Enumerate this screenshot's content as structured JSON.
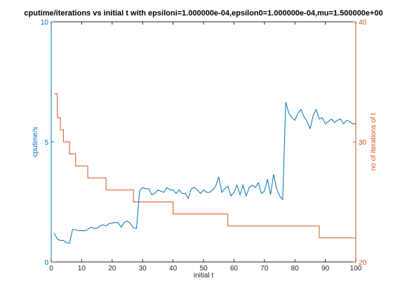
{
  "chart_data": {
    "type": "line",
    "title": "cputime/iterations vs initial t with epsiloni=1.000000e-04,epsilon0=1.000000e-04,mu=1.500000e+00",
    "xlabel": "initial t",
    "ylabel_left": "cputime/s",
    "ylabel_right": "no of iterations of t",
    "xlim": [
      0,
      100
    ],
    "ylim_left": [
      0,
      10
    ],
    "ylim_right": [
      20,
      40
    ],
    "xticks": [
      0,
      10,
      20,
      30,
      40,
      50,
      60,
      70,
      80,
      90,
      100
    ],
    "yticks_left": [
      0,
      5,
      10
    ],
    "yticks_right": [
      20,
      30,
      40
    ],
    "grid": false,
    "colors": {
      "left": "#0072BD",
      "right": "#D95319"
    },
    "series": [
      {
        "axis": "left",
        "x": [
          1,
          2,
          3,
          4,
          5,
          6,
          7,
          8,
          9,
          10,
          11,
          12,
          13,
          14,
          15,
          16,
          17,
          18,
          19,
          20,
          21,
          22,
          23,
          24,
          25,
          26,
          27,
          28,
          29,
          30,
          31,
          32,
          33,
          34,
          35,
          36,
          37,
          38,
          39,
          40,
          41,
          42,
          43,
          44,
          45,
          46,
          47,
          48,
          49,
          50,
          51,
          52,
          53,
          54,
          55,
          56,
          57,
          58,
          59,
          60,
          61,
          62,
          63,
          64,
          65,
          66,
          67,
          68,
          69,
          70,
          71,
          72,
          73,
          74,
          75,
          76,
          77,
          78,
          79,
          80,
          81,
          82,
          83,
          84,
          85,
          86,
          87,
          88,
          89,
          90,
          91,
          92,
          93,
          94,
          95,
          96,
          97,
          98,
          99,
          100
        ],
        "values": [
          1.2,
          0.95,
          0.9,
          0.9,
          0.8,
          0.78,
          1.35,
          1.35,
          1.3,
          1.3,
          1.3,
          1.35,
          1.45,
          1.4,
          1.4,
          1.5,
          1.55,
          1.5,
          1.6,
          1.62,
          1.65,
          1.63,
          1.45,
          1.65,
          1.7,
          1.6,
          1.42,
          1.4,
          2.95,
          3.1,
          3.05,
          3.05,
          2.8,
          2.85,
          3.0,
          2.95,
          2.9,
          3.1,
          3.0,
          3.0,
          2.85,
          3.0,
          2.85,
          2.85,
          2.65,
          3.05,
          3.1,
          3.0,
          2.85,
          3.0,
          2.9,
          2.9,
          3.0,
          3.15,
          3.55,
          2.9,
          3.05,
          3.15,
          2.75,
          2.9,
          3.2,
          2.8,
          3.2,
          2.75,
          3.1,
          3.2,
          3.1,
          3.3,
          2.85,
          2.95,
          3.45,
          2.8,
          3.65,
          3.05,
          2.75,
          2.6,
          6.65,
          6.2,
          6.0,
          5.9,
          6.2,
          6.35,
          6.05,
          5.85,
          5.55,
          6.1,
          6.35,
          5.95,
          6.0,
          5.75,
          5.85,
          5.95,
          5.8,
          5.9,
          5.95,
          5.75,
          5.9,
          5.85,
          5.75,
          5.75
        ]
      },
      {
        "axis": "right",
        "x": [
          1,
          2,
          3,
          4,
          5,
          6,
          7,
          8,
          9,
          10,
          11,
          12,
          13,
          14,
          15,
          16,
          17,
          18,
          19,
          20,
          21,
          22,
          23,
          24,
          25,
          26,
          27,
          28,
          29,
          30,
          31,
          32,
          33,
          34,
          35,
          36,
          37,
          38,
          39,
          40,
          41,
          42,
          43,
          44,
          45,
          46,
          47,
          48,
          49,
          50,
          51,
          52,
          53,
          54,
          55,
          56,
          57,
          58,
          59,
          60,
          61,
          62,
          63,
          64,
          65,
          66,
          67,
          68,
          69,
          70,
          71,
          72,
          73,
          74,
          75,
          76,
          77,
          78,
          79,
          80,
          81,
          82,
          83,
          84,
          85,
          86,
          87,
          88,
          89,
          90,
          91,
          92,
          93,
          94,
          95,
          96,
          97,
          98,
          99,
          100
        ],
        "values": [
          34,
          32,
          31,
          30,
          30,
          29,
          29,
          28,
          28,
          28,
          28,
          27,
          27,
          27,
          27,
          27,
          27,
          26,
          26,
          26,
          26,
          26,
          26,
          26,
          26,
          26,
          25,
          25,
          25,
          25,
          25,
          25,
          25,
          25,
          25,
          25,
          25,
          25,
          25,
          24,
          24,
          24,
          24,
          24,
          24,
          24,
          24,
          24,
          24,
          24,
          24,
          24,
          24,
          24,
          24,
          24,
          24,
          23,
          23,
          23,
          23,
          23,
          23,
          23,
          23,
          23,
          23,
          23,
          23,
          23,
          23,
          23,
          23,
          23,
          23,
          23,
          23,
          23,
          23,
          23,
          23,
          23,
          23,
          23,
          23,
          23,
          23,
          22,
          22,
          22,
          22,
          22,
          22,
          22,
          22,
          22,
          22,
          22,
          22,
          22
        ]
      }
    ]
  }
}
